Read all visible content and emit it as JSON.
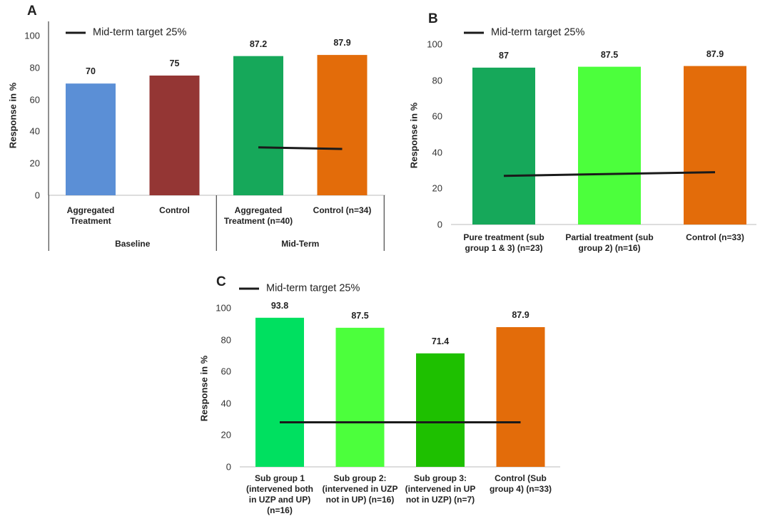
{
  "chart_data": [
    {
      "type": "bar",
      "panel": "A",
      "ylabel": "Response in %",
      "ylim": [
        0,
        100
      ],
      "yticks": [
        0,
        20,
        40,
        60,
        80,
        100
      ],
      "groups": [
        {
          "label": "Baseline",
          "categories": [
            "Aggregated Treatment",
            "Control"
          ]
        },
        {
          "label": "Mid-Term",
          "categories": [
            "Aggregated Treatment  (n=40)",
            "Control (n=34)"
          ]
        }
      ],
      "series": [
        {
          "type": "bar",
          "values": [
            70,
            75,
            87.2,
            87.9
          ],
          "colors": [
            "#5b8fd6",
            "#943634",
            "#16a85a",
            "#e36c0a"
          ]
        },
        {
          "type": "line",
          "name": "Mid-term target 25%",
          "color": "#1a1a1a",
          "values": [
            null,
            null,
            30,
            29
          ]
        }
      ]
    },
    {
      "type": "bar",
      "panel": "B",
      "ylabel": "Response in %",
      "ylim": [
        0,
        100
      ],
      "yticks": [
        0,
        20,
        40,
        60,
        80,
        100
      ],
      "categories": [
        "Pure treatment (sub group 1 & 3) (n=23)",
        "Partial treatment (sub group 2) (n=16)",
        "Control (n=33)"
      ],
      "series": [
        {
          "type": "bar",
          "values": [
            87,
            87.5,
            87.9
          ],
          "colors": [
            "#16a85a",
            "#4cff3c",
            "#e36c0a"
          ]
        },
        {
          "type": "line",
          "name": "Mid-term target 25%",
          "color": "#1a1a1a",
          "values": [
            27,
            28,
            29
          ]
        }
      ]
    },
    {
      "type": "bar",
      "panel": "C",
      "ylabel": "Response in %",
      "ylim": [
        0,
        100
      ],
      "yticks": [
        0,
        20,
        40,
        60,
        80,
        100
      ],
      "categories": [
        "Sub group 1 (intervened both in UZP and UP) (n=16)",
        "Sub group 2: (intervened in UZP not in UP) (n=16)",
        "Sub group 3: (intervened in UP not in UZP) (n=7)",
        "Control (Sub group 4) (n=33)"
      ],
      "series": [
        {
          "type": "bar",
          "values": [
            93.8,
            87.5,
            71.4,
            87.9
          ],
          "colors": [
            "#00e060",
            "#4cff3c",
            "#1ec000",
            "#e36c0a"
          ]
        },
        {
          "type": "line",
          "name": "Mid-term target 25%",
          "color": "#1a1a1a",
          "values": [
            28,
            28,
            28,
            28
          ]
        }
      ]
    }
  ]
}
